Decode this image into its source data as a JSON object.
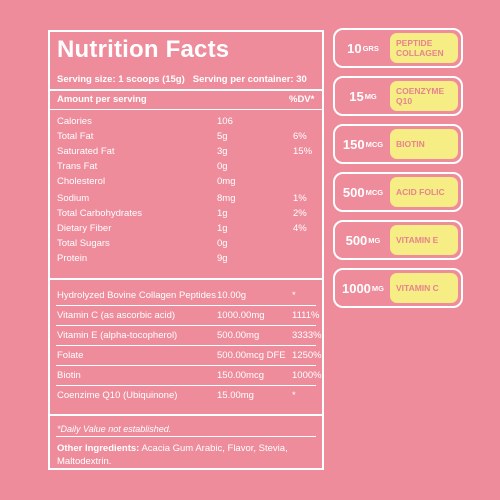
{
  "panel": {
    "title": "Nutrition Facts",
    "serving_size": "Serving size: 1 scoops (15g)",
    "servings_per_container": "Serving per container: 30",
    "amount_header": "Amount per serving",
    "dv_header": "%DV*",
    "nutrients": [
      {
        "name": "Calories",
        "amount": "106",
        "dv": ""
      },
      {
        "name": "Total Fat",
        "amount": "5g",
        "dv": "6%"
      },
      {
        "name": "Saturated Fat",
        "amount": "3g",
        "dv": "15%"
      },
      {
        "name": "Trans Fat",
        "amount": "0g",
        "dv": ""
      },
      {
        "name": "Cholesterol",
        "amount": "0mg",
        "dv": ""
      },
      {
        "name": "Sodium",
        "amount": "8mg",
        "dv": "1%"
      },
      {
        "name": "Total Carbohydrates",
        "amount": "1g",
        "dv": "2%"
      },
      {
        "name": "Dietary Fiber",
        "amount": "1g",
        "dv": "4%"
      },
      {
        "name": "Total Sugars",
        "amount": "0g",
        "dv": ""
      },
      {
        "name": "Protein",
        "amount": "9g",
        "dv": ""
      }
    ],
    "supplements": [
      {
        "name": "Hydrolyzed Bovine Collagen Peptides",
        "amount": "10.00g",
        "dv": "*"
      },
      {
        "name": "Vitamin C (as ascorbic acid)",
        "amount": "1000.00mg",
        "dv": "1111%"
      },
      {
        "name": "Vitamin E (alpha-tocopherol)",
        "amount": "500.00mg",
        "dv": "3333%"
      },
      {
        "name": "Folate",
        "amount": "500.00mcg DFE",
        "dv": "1250%"
      },
      {
        "name": "Biotin",
        "amount": "150.00mcg",
        "dv": "1000%"
      },
      {
        "name": "Coenzime Q10 (Ubiquinone)",
        "amount": "15.00mg",
        "dv": "*"
      }
    ],
    "footnote": "*Daily Value not established.",
    "other_ingredients_label": "Other Ingredients:",
    "other_ingredients_text": " Acacia Gum Arabic, Flavor, Stevia, Maltodextrin."
  },
  "pills": [
    {
      "amount": "10",
      "unit": "GRS",
      "label": "PEPTIDE COLLAGEN"
    },
    {
      "amount": "15",
      "unit": "MG",
      "label": "COENZYME Q10"
    },
    {
      "amount": "150",
      "unit": "MCG",
      "label": "BIOTIN"
    },
    {
      "amount": "500",
      "unit": "MCG",
      "label": "ACID FOLIC"
    },
    {
      "amount": "500",
      "unit": "MG",
      "label": "VITAMIN E"
    },
    {
      "amount": "1000",
      "unit": "MG",
      "label": "VITAMIN C"
    }
  ],
  "colors": {
    "background": "#EE8C9C",
    "pill_label_bg": "#F6ED84",
    "pill_label_text": "#E7838F",
    "text": "#FFFFFF"
  }
}
